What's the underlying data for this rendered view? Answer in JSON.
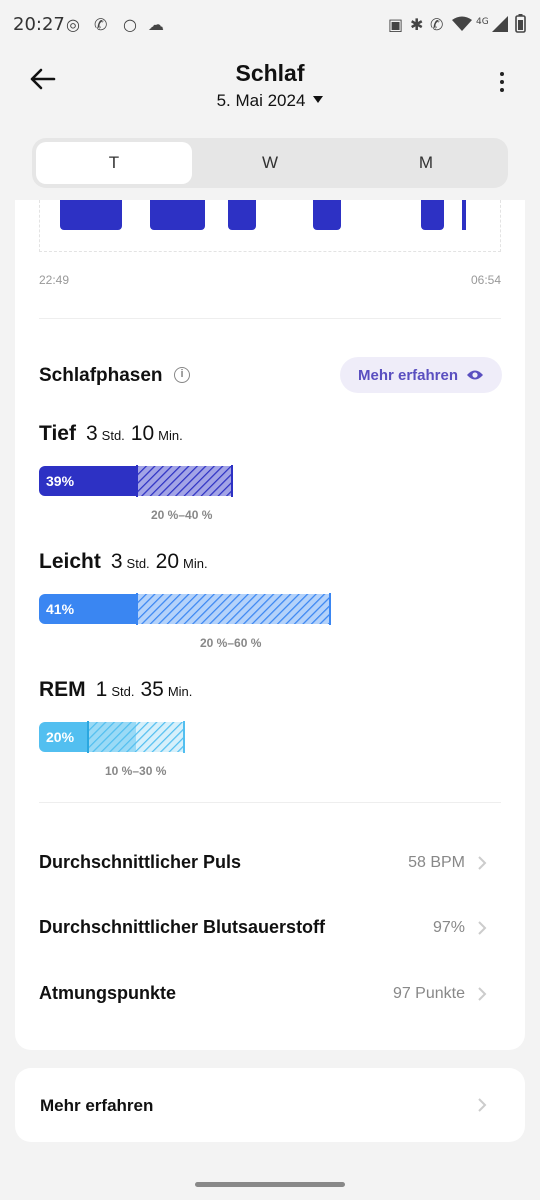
{
  "status_bar": {
    "time": "20:27",
    "network": "4G",
    "icons": [
      "whatsapp-icon",
      "wifi-call-icon",
      "circle-icon",
      "cloud-icon",
      "nfc-icon",
      "bluetooth-icon",
      "wifi-call-icon",
      "wifi-icon",
      "signal-icon",
      "battery-icon"
    ]
  },
  "header": {
    "title": "Schlaf",
    "date": "5. Mai 2024"
  },
  "tabs": [
    {
      "label": "T",
      "active": true
    },
    {
      "label": "W",
      "active": false
    },
    {
      "label": "M",
      "active": false
    }
  ],
  "timeline": {
    "start": "22:49",
    "end": "06:54",
    "color": "#2d31c4"
  },
  "phases": {
    "title": "Schlafphasen",
    "learn_more": "Mehr erfahren",
    "items": [
      {
        "name": "Tief",
        "hours": "3",
        "hours_unit": "Std.",
        "minutes": "10",
        "minutes_unit": "Min.",
        "percent": "39%",
        "range": "20 %–40 %",
        "color": "#2d31c4"
      },
      {
        "name": "Leicht",
        "hours": "3",
        "hours_unit": "Std.",
        "minutes": "20",
        "minutes_unit": "Min.",
        "percent": "41%",
        "range": "20 %–60 %",
        "color": "#3a86f2"
      },
      {
        "name": "REM",
        "hours": "1",
        "hours_unit": "Std.",
        "minutes": "35",
        "minutes_unit": "Min.",
        "percent": "20%",
        "range": "10 %–30 %",
        "color": "#52bff0"
      }
    ]
  },
  "metrics": [
    {
      "label": "Durchschnittlicher Puls",
      "value": "58 BPM"
    },
    {
      "label": "Durchschnittlicher Blutsauerstoff",
      "value": "97%"
    },
    {
      "label": "Atmungspunkte",
      "value": "97 Punkte"
    }
  ],
  "footer_card": {
    "label": "Mehr erfahren"
  },
  "colors": {
    "accent": "#5a4fc0",
    "accent_bg": "#efedf9"
  }
}
